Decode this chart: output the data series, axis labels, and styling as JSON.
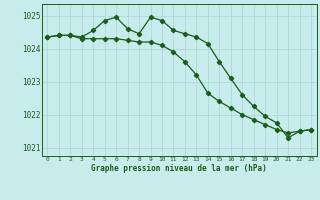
{
  "title": "Graphe pression niveau de la mer (hPa)",
  "background_color": "#c8ecec",
  "grid_color": "#b0d8d8",
  "line_color": "#1a5c1a",
  "xlim": [
    -0.5,
    23.5
  ],
  "ylim": [
    1020.75,
    1025.35
  ],
  "yticks": [
    1021,
    1022,
    1023,
    1024,
    1025
  ],
  "xticks": [
    0,
    1,
    2,
    3,
    4,
    5,
    6,
    7,
    8,
    9,
    10,
    11,
    12,
    13,
    14,
    15,
    16,
    17,
    18,
    19,
    20,
    21,
    22,
    23
  ],
  "line1_x": [
    0,
    1,
    2,
    3,
    4,
    5,
    6,
    7,
    8,
    9,
    10,
    11,
    12,
    13,
    14,
    15,
    16,
    17,
    18,
    19,
    20,
    21,
    22,
    23
  ],
  "line1_y": [
    1024.35,
    1024.4,
    1024.4,
    1024.35,
    1024.55,
    1024.85,
    1024.95,
    1024.6,
    1024.45,
    1024.95,
    1024.85,
    1024.55,
    1024.45,
    1024.35,
    1024.15,
    1023.6,
    1023.1,
    1022.6,
    1022.25,
    1021.95,
    1021.75,
    1021.3,
    1021.5,
    1021.55
  ],
  "line2_x": [
    0,
    1,
    2,
    3,
    4,
    5,
    6,
    7,
    8,
    9,
    10,
    11,
    12,
    13,
    14,
    15,
    16,
    17,
    18,
    19,
    20,
    21,
    22,
    23
  ],
  "line2_y": [
    1024.35,
    1024.4,
    1024.4,
    1024.3,
    1024.3,
    1024.3,
    1024.3,
    1024.25,
    1024.2,
    1024.2,
    1024.1,
    1023.9,
    1023.6,
    1023.2,
    1022.65,
    1022.4,
    1022.2,
    1022.0,
    1021.85,
    1021.7,
    1021.55,
    1021.45,
    1021.5,
    1021.55
  ]
}
